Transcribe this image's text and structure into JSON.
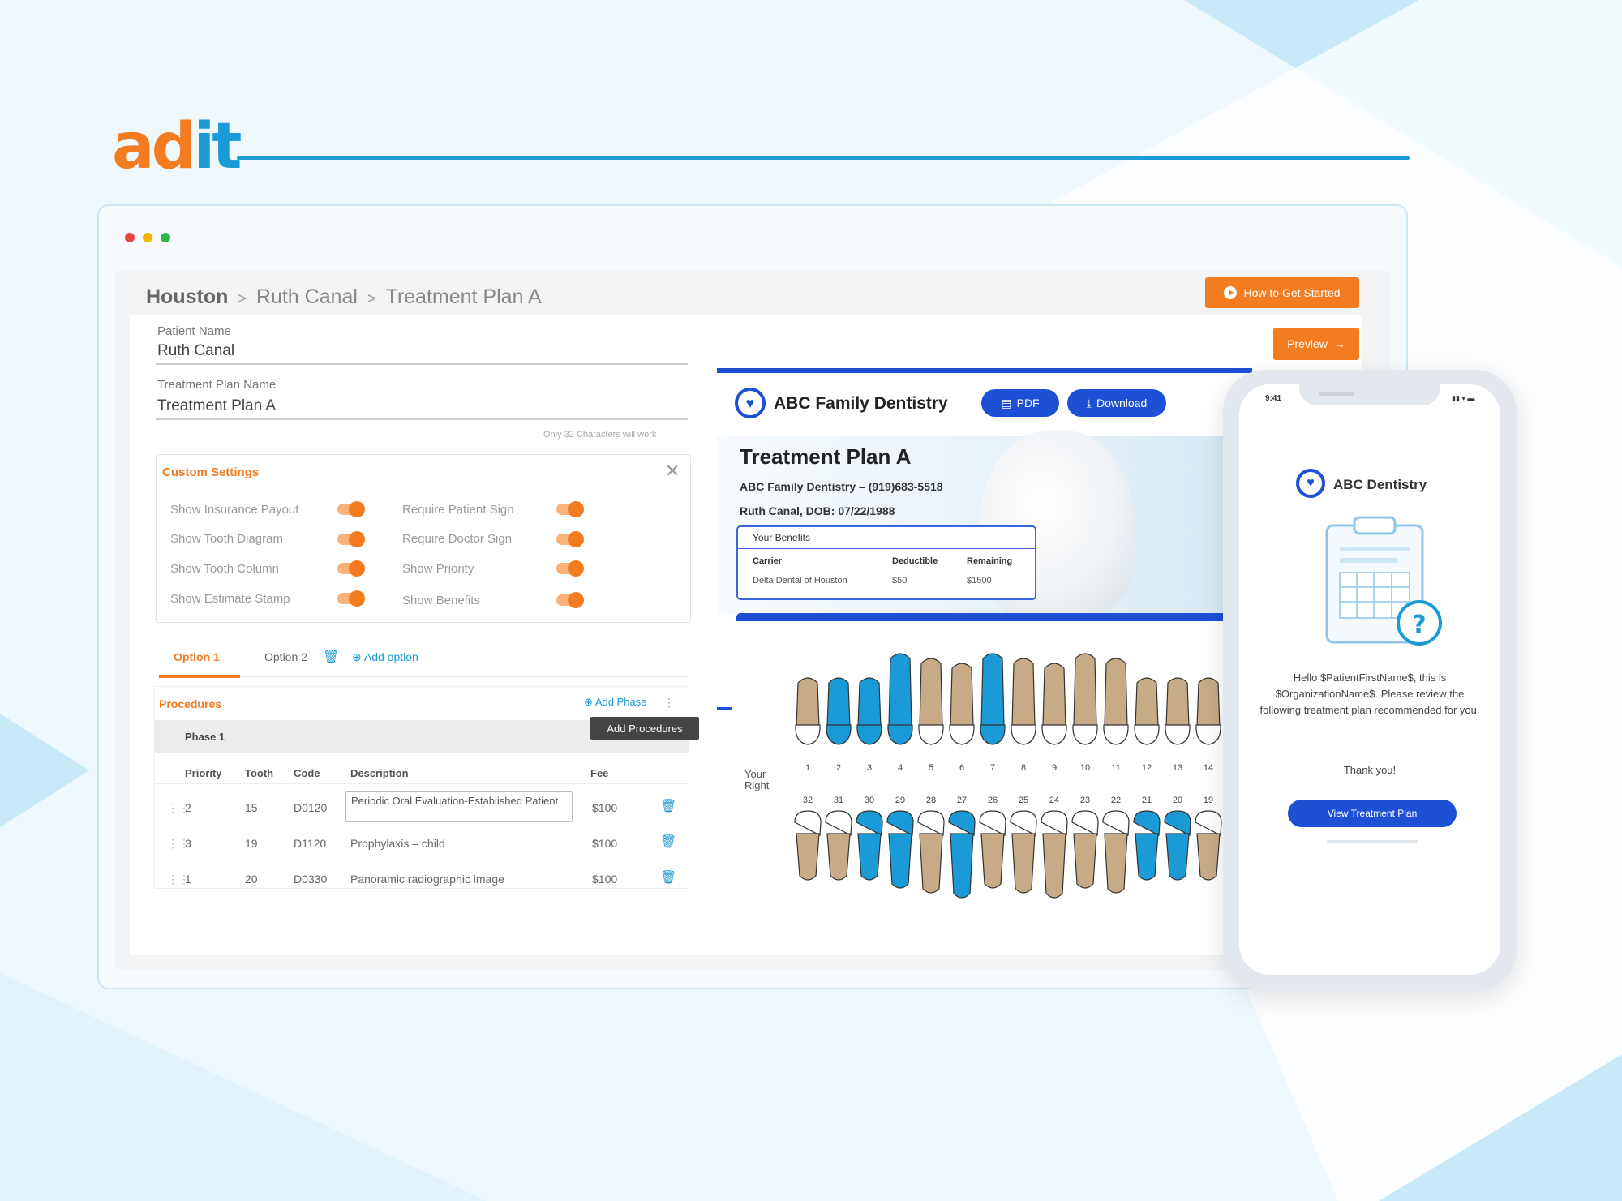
{
  "colors": {
    "accent_orange": "#f47c20",
    "accent_blue": "#1a9ad6",
    "brand_blue": "#1e50d6"
  },
  "logo": {
    "part1": "ad",
    "part2": "it"
  },
  "breadcrumb": {
    "items": [
      "Houston",
      "Ruth Canal",
      "Treatment Plan A"
    ]
  },
  "header": {
    "how_label": "How to Get Started",
    "preview_label": "Preview"
  },
  "form": {
    "patient_label": "Patient Name",
    "patient_value": "Ruth Canal",
    "plan_label": "Treatment Plan Name",
    "plan_value": "Treatment Plan A",
    "plan_hint": "Only 32 Characters will work"
  },
  "settings": {
    "title": "Custom Settings",
    "left": [
      "Show Insurance Payout",
      "Show Tooth Diagram",
      "Show Tooth Column",
      "Show Estimate Stamp"
    ],
    "right": [
      "Require Patient Sign",
      "Require Doctor Sign",
      "Show Priority",
      "Show Benefits"
    ]
  },
  "tabs": {
    "option1": "Option 1",
    "option2": "Option 2",
    "add": "Add option"
  },
  "procedures": {
    "title": "Procedures",
    "add_phase": "Add Phase",
    "tooltip": "Add Procedures",
    "phase": "Phase 1",
    "columns": [
      "Priority",
      "Tooth",
      "Code",
      "Description",
      "Fee"
    ],
    "rows": [
      {
        "priority": "2",
        "tooth": "15",
        "code": "D0120",
        "description": "Periodic Oral Evaluation-Established Patient",
        "fee": "$100"
      },
      {
        "priority": "3",
        "tooth": "19",
        "code": "D1120",
        "description": "Prophylaxis – child",
        "fee": "$100"
      },
      {
        "priority": "1",
        "tooth": "20",
        "code": "D0330",
        "description": "Panoramic radiographic image",
        "fee": "$100"
      }
    ]
  },
  "preview": {
    "brand": "ABC Family Dentistry",
    "pdf_label": "PDF",
    "download_label": "Download",
    "plan_title": "Treatment Plan A",
    "practice_line": "ABC Family Dentistry – (919)683-5518",
    "patient_line": "Ruth Canal, DOB: 07/22/1988",
    "benefits": {
      "title": "Your Benefits",
      "headers": [
        "Carrier",
        "Deductible",
        "Remaining"
      ],
      "row": [
        "Delta Dental of Houston",
        "$50",
        "$1500"
      ]
    },
    "side_label": "Your Right",
    "upper_numbers": [
      "1",
      "2",
      "3",
      "4",
      "5",
      "6",
      "7",
      "8",
      "9",
      "10",
      "11",
      "12",
      "13",
      "14"
    ],
    "lower_numbers": [
      "32",
      "31",
      "30",
      "29",
      "28",
      "27",
      "26",
      "25",
      "24",
      "23",
      "22",
      "21",
      "20",
      "19"
    ],
    "upper_highlight": [
      1,
      2,
      3,
      6
    ],
    "lower_highlight": [
      2,
      3,
      5,
      11,
      12
    ]
  },
  "phone": {
    "time": "9:41",
    "brand": "ABC Dentistry",
    "message": "Hello $PatientFirstName$, this is $OrganizationName$. Please review the following treatment plan recommended for you.",
    "thanks": "Thank you!",
    "button": "View Treatment Plan"
  }
}
